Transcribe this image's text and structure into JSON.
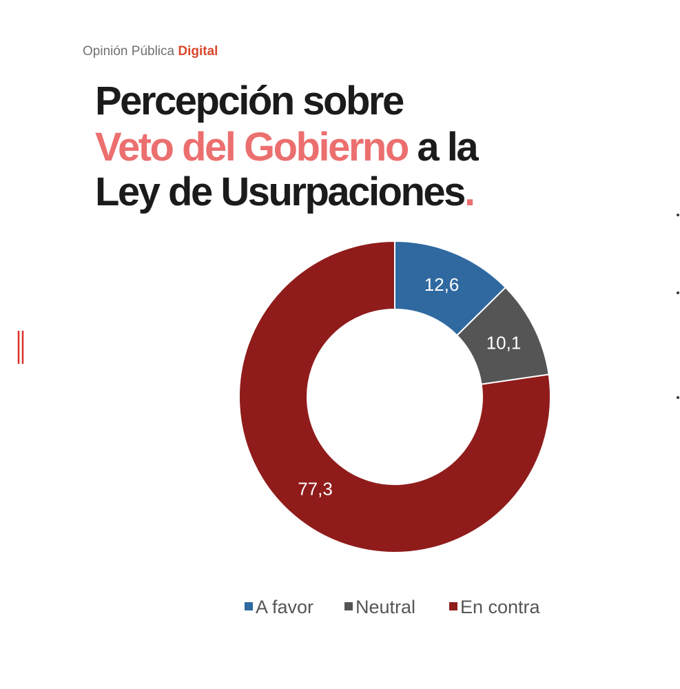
{
  "header": {
    "brand": "Opinión Pública",
    "brand_accent": "Digital"
  },
  "chart_data": {
    "type": "pie",
    "title": [
      "Percepción sobre",
      "Veto del Gobierno",
      "a la",
      "Ley de Usurpaciones",
      "."
    ],
    "categories": [
      "A favor",
      "Neutral",
      "En contra"
    ],
    "values": [
      12.6,
      10.1,
      77.3
    ],
    "value_labels": [
      "12,6",
      "10,1",
      "77,3"
    ],
    "colors": [
      "#2f69a0",
      "#555555",
      "#8f1c1b"
    ],
    "donut": true,
    "legend": "bottom"
  }
}
